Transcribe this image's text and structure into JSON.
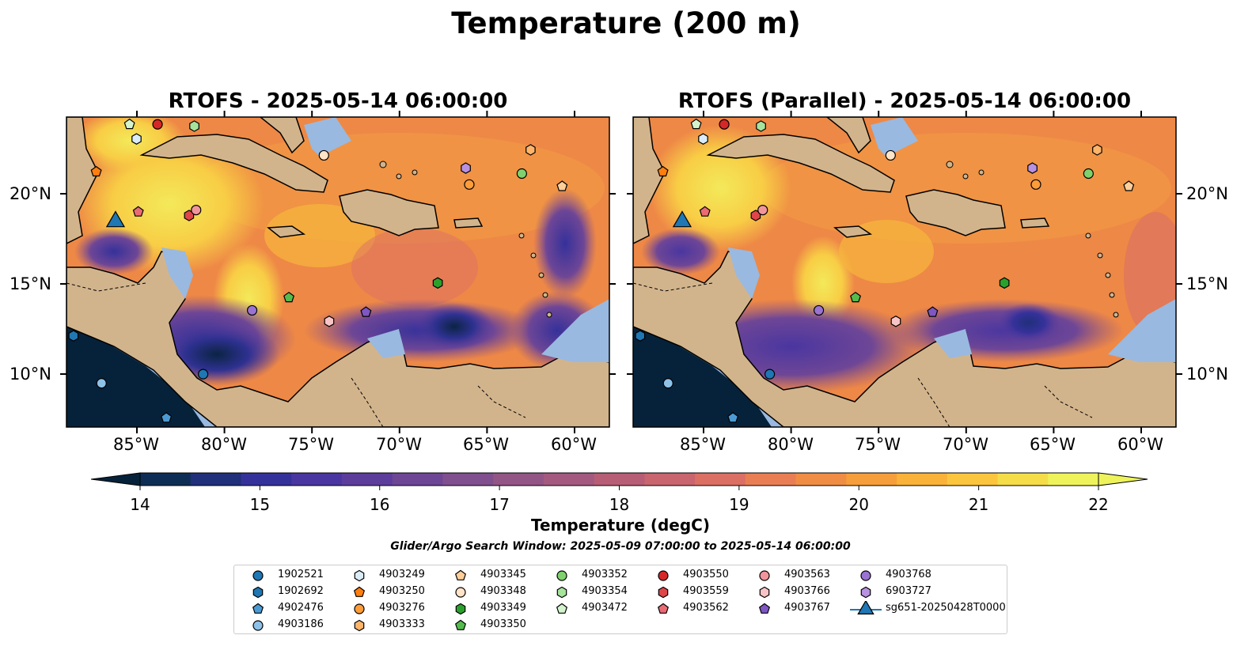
{
  "suptitle": "Temperature (200 m)",
  "panels": [
    {
      "title": "RTOFS - 2025-05-14 06:00:00"
    },
    {
      "title": "RTOFS (Parallel) - 2025-05-14 06:00:00"
    }
  ],
  "map": {
    "lon_range": [
      -89,
      -58
    ],
    "lat_range": [
      7,
      24
    ],
    "lat_ticks": [
      "20°N",
      "15°N",
      "10°N"
    ],
    "lon_ticks": [
      "85°W",
      "80°W",
      "75°W",
      "70°W",
      "65°W",
      "60°W"
    ],
    "colors": {
      "land": "#d2b48c",
      "shelf": "#99b9e0",
      "coast": "#000000"
    }
  },
  "colorbar": {
    "label": "Temperature (degC)",
    "range": [
      14,
      22
    ],
    "ticks": [
      "14",
      "15",
      "16",
      "17",
      "18",
      "19",
      "20",
      "21",
      "22"
    ],
    "colormap": [
      "#06223a",
      "#0e2d55",
      "#20307a",
      "#35319a",
      "#4a36a0",
      "#5c3d9c",
      "#6e4696",
      "#804f8e",
      "#925586",
      "#a45a7e",
      "#b75e76",
      "#c9656e",
      "#db6f64",
      "#e97e55",
      "#f08d45",
      "#f69e3c",
      "#fab23a",
      "#fbc63e",
      "#f5dd4a",
      "#eef35b"
    ]
  },
  "search_window": "Glider/Argo Search Window: 2025-05-09 07:00:00 to 2025-05-14 06:00:00",
  "legend": [
    {
      "label": "1902521",
      "marker": "circle",
      "color": "#1f77b4"
    },
    {
      "label": "1902692",
      "marker": "hexagon",
      "color": "#1f77b4"
    },
    {
      "label": "4902476",
      "marker": "pentagon",
      "color": "#4b9ad4"
    },
    {
      "label": "4903186",
      "marker": "circle",
      "color": "#8ec1e8"
    },
    {
      "label": "4903249",
      "marker": "hexagon",
      "color": "#d9ecf8"
    },
    {
      "label": "4903250",
      "marker": "pentagon",
      "color": "#ff7f0e"
    },
    {
      "label": "4903276",
      "marker": "circle",
      "color": "#ff9c3a"
    },
    {
      "label": "4903333",
      "marker": "hexagon",
      "color": "#ffb46a"
    },
    {
      "label": "4903345",
      "marker": "pentagon",
      "color": "#ffce99"
    },
    {
      "label": "4903348",
      "marker": "circle",
      "color": "#ffe4c8"
    },
    {
      "label": "4903349",
      "marker": "hexagon",
      "color": "#2ca02c"
    },
    {
      "label": "4903350",
      "marker": "pentagon",
      "color": "#55bb4f"
    },
    {
      "label": "4903352",
      "marker": "circle",
      "color": "#7fd16e"
    },
    {
      "label": "4903354",
      "marker": "hexagon",
      "color": "#a6e39c"
    },
    {
      "label": "4903472",
      "marker": "pentagon",
      "color": "#d3f4cc"
    },
    {
      "label": "4903550",
      "marker": "circle",
      "color": "#d62728"
    },
    {
      "label": "4903559",
      "marker": "hexagon",
      "color": "#e0454a"
    },
    {
      "label": "4903562",
      "marker": "pentagon",
      "color": "#ea6b73"
    },
    {
      "label": "4903563",
      "marker": "circle",
      "color": "#f2959b"
    },
    {
      "label": "4903766",
      "marker": "hexagon",
      "color": "#f9c4c6"
    },
    {
      "label": "4903767",
      "marker": "pentagon",
      "color": "#7e57c2"
    },
    {
      "label": "4903768",
      "marker": "circle",
      "color": "#9b73d3"
    },
    {
      "label": "6903727",
      "marker": "hexagon",
      "color": "#b891e0"
    },
    {
      "label": "sg651-20250428T0000",
      "marker": "triangle",
      "color": "#1f77b4"
    }
  ],
  "map_markers": [
    {
      "id": "1902521",
      "lon": -81.2,
      "lat": 9.9
    },
    {
      "id": "1902692",
      "lon": -88.6,
      "lat": 12.0
    },
    {
      "id": "4902476",
      "lon": -83.3,
      "lat": 7.5
    },
    {
      "id": "4903186",
      "lon": -87.0,
      "lat": 9.4
    },
    {
      "id": "4903249",
      "lon": -85.0,
      "lat": 22.8
    },
    {
      "id": "4903250",
      "lon": -87.3,
      "lat": 21.0
    },
    {
      "id": "4903276",
      "lon": -66.0,
      "lat": 20.3
    },
    {
      "id": "4903333",
      "lon": -62.5,
      "lat": 22.2
    },
    {
      "id": "4903345",
      "lon": -60.7,
      "lat": 20.2
    },
    {
      "id": "4903348",
      "lon": -74.3,
      "lat": 21.9
    },
    {
      "id": "4903349",
      "lon": -67.8,
      "lat": 14.9
    },
    {
      "id": "4903350",
      "lon": -76.3,
      "lat": 14.1
    },
    {
      "id": "4903352",
      "lon": -63.0,
      "lat": 20.9
    },
    {
      "id": "4903354",
      "lon": -81.7,
      "lat": 23.5
    },
    {
      "id": "4903472",
      "lon": -85.4,
      "lat": 23.6
    },
    {
      "id": "4903550",
      "lon": -83.8,
      "lat": 23.6
    },
    {
      "id": "4903559",
      "lon": -82.0,
      "lat": 18.6
    },
    {
      "id": "4903562",
      "lon": -84.9,
      "lat": 18.8
    },
    {
      "id": "4903563",
      "lon": -81.6,
      "lat": 18.9
    },
    {
      "id": "4903766",
      "lon": -74.0,
      "lat": 12.8
    },
    {
      "id": "4903767",
      "lon": -71.9,
      "lat": 13.3
    },
    {
      "id": "4903768",
      "lon": -78.4,
      "lat": 13.4
    },
    {
      "id": "6903727",
      "lon": -66.2,
      "lat": 21.2
    },
    {
      "id": "sg651-20250428T0000",
      "lon": -86.2,
      "lat": 18.4
    }
  ]
}
